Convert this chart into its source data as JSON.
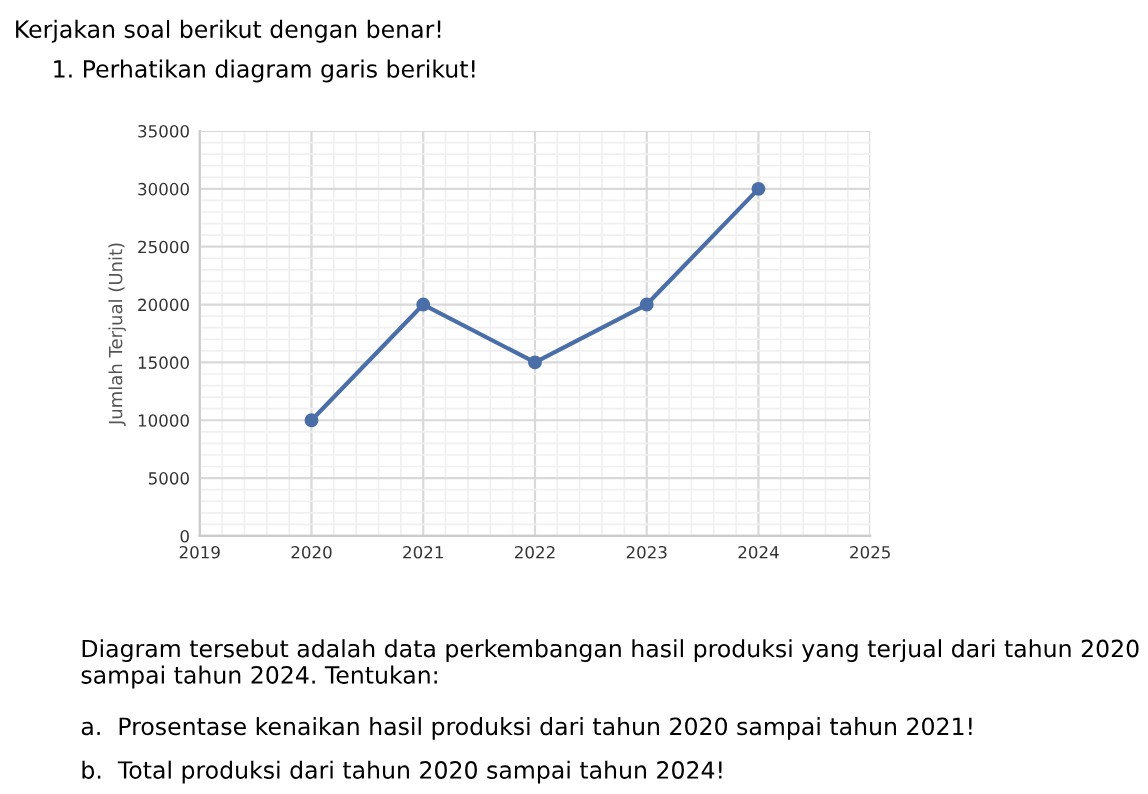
{
  "chart_data": {
    "type": "line",
    "title": "Kerjakan soal berikut dengan benar!",
    "subtitle": "1. Perhatikan diagram garis berikut!",
    "ylabel": "Jumlah Terjual (Unit)",
    "x": [
      2020,
      2021,
      2022,
      2023,
      2024
    ],
    "series": [
      {
        "color": "#4a6ea8",
        "values": [
          10000,
          20000,
          15000,
          20000,
          30000
        ]
      }
    ],
    "xlim": [
      2019,
      2025
    ],
    "xticks": [
      2019,
      2020,
      2021,
      2022,
      2023,
      2024,
      2025
    ],
    "ylim": [
      0,
      35000
    ],
    "yticks": [
      0,
      5000,
      10000,
      15000,
      20000,
      25000,
      30000,
      35000
    ],
    "grid": true,
    "marker": "circle",
    "line_style": "solid",
    "legend": false,
    "annotations": [
      "Diagram tersebut adalah data perkembangan hasil produksi yang terjual dari tahun 2020 sampai tahun 2024. Tentukan:",
      "a.  Prosentase kenaikan hasil produksi dari tahun 2020 sampai tahun 2021!",
      "b.  Total produksi dari tahun 2020 sampai tahun 2024!"
    ]
  }
}
